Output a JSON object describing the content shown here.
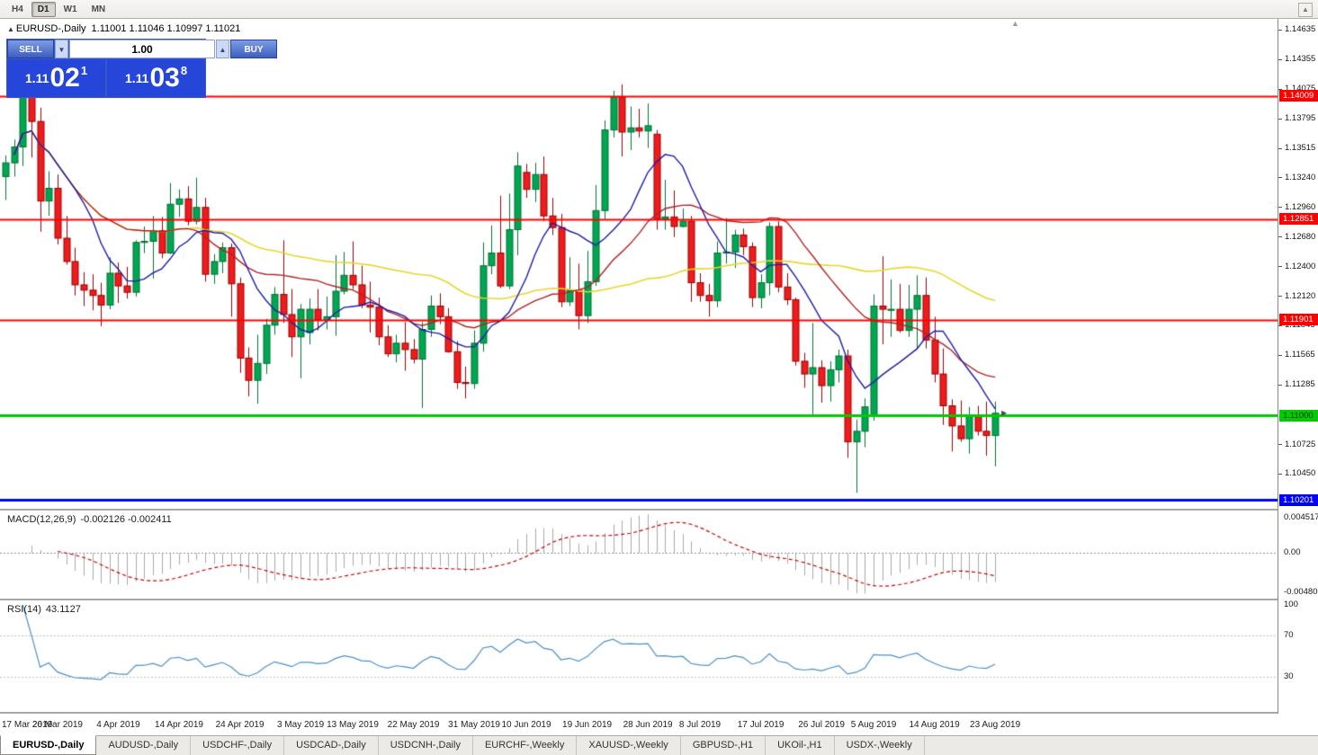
{
  "toolbar": {
    "timeframes": [
      {
        "label": "H4",
        "active": false
      },
      {
        "label": "D1",
        "active": true
      },
      {
        "label": "W1",
        "active": false
      },
      {
        "label": "MN",
        "active": false
      }
    ]
  },
  "chart": {
    "title_symbol": "EURUSD-,Daily",
    "ohlc_text": "1.11001 1.11046 1.10997 1.11021"
  },
  "trade_panel": {
    "sell_label": "SELL",
    "buy_label": "BUY",
    "volume": "1.00",
    "sell_price": {
      "small": "1.11",
      "big": "02",
      "sup": "1"
    },
    "buy_price": {
      "small": "1.11",
      "big": "03",
      "sup": "8"
    }
  },
  "price_scale": {
    "ticks": [
      "1.14635",
      "1.14355",
      "1.14075",
      "1.13795",
      "1.13515",
      "1.13240",
      "1.12960",
      "1.12680",
      "1.12400",
      "1.12120",
      "1.11845",
      "1.11565",
      "1.11285",
      "1.10725",
      "1.10450"
    ],
    "levels": [
      {
        "label": "1.14009",
        "price": 1.14009,
        "color": "#FF0000",
        "text_color": "#FFFFFF"
      },
      {
        "label": "1.12851",
        "price": 1.12851,
        "color": "#FF0000",
        "text_color": "#FFFFFF"
      },
      {
        "label": "1.11901",
        "price": 1.11901,
        "color": "#FF0000",
        "text_color": "#FFFFFF"
      },
      {
        "label": "1.11000",
        "price": 1.11,
        "color": "#00CC00",
        "text_color": "#002b00"
      },
      {
        "label": "1.10201",
        "price": 1.10201,
        "color": "#0000FF",
        "text_color": "#FFFFFF"
      }
    ]
  },
  "macd": {
    "name": "MACD(12,26,9)",
    "values": "-0.002126 -0.002411",
    "scale_top": "0.004517",
    "scale_mid": "0.00",
    "scale_bottom": "-0.004806"
  },
  "rsi": {
    "name": "RSI(14)",
    "value": "43.1127",
    "scale": [
      "100",
      "70",
      "30"
    ]
  },
  "dates": [
    {
      "label": "17 Mar 2019",
      "i": 0
    },
    {
      "label": "26 Mar 2019",
      "i": 6
    },
    {
      "label": "4 Apr 2019",
      "i": 13
    },
    {
      "label": "14 Apr 2019",
      "i": 20
    },
    {
      "label": "24 Apr 2019",
      "i": 27
    },
    {
      "label": "3 May 2019",
      "i": 34
    },
    {
      "label": "13 May 2019",
      "i": 40
    },
    {
      "label": "22 May 2019",
      "i": 47
    },
    {
      "label": "31 May 2019",
      "i": 54
    },
    {
      "label": "10 Jun 2019",
      "i": 60
    },
    {
      "label": "19 Jun 2019",
      "i": 67
    },
    {
      "label": "28 Jun 2019",
      "i": 74
    },
    {
      "label": "8 Jul 2019",
      "i": 80
    },
    {
      "label": "17 Jul 2019",
      "i": 87
    },
    {
      "label": "26 Jul 2019",
      "i": 94
    },
    {
      "label": "5 Aug 2019",
      "i": 100
    },
    {
      "label": "14 Aug 2019",
      "i": 107
    },
    {
      "label": "23 Aug 2019",
      "i": 114
    }
  ],
  "tabs": [
    {
      "label": "EURUSD-,Daily",
      "active": true
    },
    {
      "label": "AUDUSD-,Daily",
      "active": false
    },
    {
      "label": "USDCHF-,Daily",
      "active": false
    },
    {
      "label": "USDCAD-,Daily",
      "active": false
    },
    {
      "label": "USDCNH-,Daily",
      "active": false
    },
    {
      "label": "EURCHF-,Weekly",
      "active": false
    },
    {
      "label": "XAUUSD-,Weekly",
      "active": false
    },
    {
      "label": "GBPUSD-,H1",
      "active": false
    },
    {
      "label": "UKOil-,H1",
      "active": false
    },
    {
      "label": "USDX-,Weekly",
      "active": false
    }
  ],
  "chart_data": {
    "type": "candlestick",
    "symbol": "EURUSD-",
    "timeframe": "Daily",
    "y_range": [
      1.1012,
      1.14737
    ],
    "macd_range": [
      -0.004806,
      0.004517
    ],
    "rsi_levels": [
      70,
      30
    ],
    "ma_periods": {
      "fast": 9,
      "mid": 22,
      "slow": 50
    },
    "colors": {
      "bull": "#00A650",
      "bull_border": "#007038",
      "bear": "#EE1C1C",
      "bear_border": "#990000",
      "ma_fast": "#1C1CA8",
      "ma_mid": "#B22222",
      "ma_slow": "#E8D52E",
      "macd_hist": "#A8A8A8",
      "macd_signal": "#CC0000",
      "rsi_line": "#4A8FC7",
      "level_line": "#C0C0C0"
    },
    "hlines": [
      {
        "price": 1.14009,
        "color": "#FF0000",
        "width": 2
      },
      {
        "price": 1.12851,
        "color": "#FF0000",
        "width": 2
      },
      {
        "price": 1.11901,
        "color": "#FF0000",
        "width": 2
      },
      {
        "price": 1.11,
        "color": "#00CC00",
        "width": 3
      },
      {
        "price": 1.10201,
        "color": "#0000FF",
        "width": 3
      }
    ],
    "candles": [
      [
        1.1325,
        1.1345,
        1.1303,
        1.1338
      ],
      [
        1.1338,
        1.136,
        1.1325,
        1.1353
      ],
      [
        1.1353,
        1.141,
        1.1335,
        1.1405
      ],
      [
        1.1405,
        1.1412,
        1.1343,
        1.1377
      ],
      [
        1.1377,
        1.139,
        1.1273,
        1.1302
      ],
      [
        1.1302,
        1.133,
        1.1288,
        1.1314
      ],
      [
        1.1314,
        1.1327,
        1.1261,
        1.1267
      ],
      [
        1.1267,
        1.1288,
        1.1242,
        1.1245
      ],
      [
        1.1245,
        1.1258,
        1.1213,
        1.1223
      ],
      [
        1.1223,
        1.1235,
        1.1203,
        1.1218
      ],
      [
        1.1218,
        1.1233,
        1.1199,
        1.1213
      ],
      [
        1.1213,
        1.1225,
        1.1184,
        1.1204
      ],
      [
        1.1204,
        1.1249,
        1.12,
        1.1234
      ],
      [
        1.1234,
        1.1244,
        1.1206,
        1.1222
      ],
      [
        1.1222,
        1.124,
        1.121,
        1.1216
      ],
      [
        1.1216,
        1.1265,
        1.1212,
        1.1263
      ],
      [
        1.1263,
        1.1278,
        1.1253,
        1.1264
      ],
      [
        1.1264,
        1.1288,
        1.1229,
        1.1274
      ],
      [
        1.1274,
        1.1287,
        1.1248,
        1.1253
      ],
      [
        1.1253,
        1.1319,
        1.1252,
        1.1299
      ],
      [
        1.1299,
        1.1313,
        1.1287,
        1.1304
      ],
      [
        1.1304,
        1.1316,
        1.1279,
        1.1283
      ],
      [
        1.1283,
        1.1324,
        1.128,
        1.1296
      ],
      [
        1.1296,
        1.1305,
        1.1226,
        1.1233
      ],
      [
        1.1233,
        1.1252,
        1.1224,
        1.1245
      ],
      [
        1.1245,
        1.1263,
        1.1234,
        1.1258
      ],
      [
        1.1258,
        1.1262,
        1.1193,
        1.1224
      ],
      [
        1.1224,
        1.123,
        1.114,
        1.1154
      ],
      [
        1.1154,
        1.1164,
        1.1118,
        1.1133
      ],
      [
        1.1133,
        1.1176,
        1.1111,
        1.1149
      ],
      [
        1.1149,
        1.1191,
        1.1139,
        1.1185
      ],
      [
        1.1185,
        1.1221,
        1.1176,
        1.1214
      ],
      [
        1.1214,
        1.1265,
        1.1187,
        1.1195
      ],
      [
        1.1195,
        1.1219,
        1.1155,
        1.1174
      ],
      [
        1.1174,
        1.1205,
        1.1135,
        1.12
      ],
      [
        1.1178,
        1.121,
        1.1167,
        1.12
      ],
      [
        1.12,
        1.1219,
        1.118,
        1.119
      ],
      [
        1.119,
        1.1212,
        1.1181,
        1.1193
      ],
      [
        1.1193,
        1.1251,
        1.1175,
        1.1217
      ],
      [
        1.1217,
        1.1254,
        1.1214,
        1.1232
      ],
      [
        1.1232,
        1.1264,
        1.1219,
        1.1223
      ],
      [
        1.1223,
        1.1241,
        1.1201,
        1.1204
      ],
      [
        1.1204,
        1.1226,
        1.1178,
        1.1202
      ],
      [
        1.1202,
        1.1211,
        1.1166,
        1.1174
      ],
      [
        1.1174,
        1.1185,
        1.1155,
        1.1158
      ],
      [
        1.1158,
        1.1176,
        1.115,
        1.1168
      ],
      [
        1.1168,
        1.1188,
        1.1142,
        1.1162
      ],
      [
        1.1162,
        1.1172,
        1.1149,
        1.1153
      ],
      [
        1.1153,
        1.1188,
        1.1107,
        1.1181
      ],
      [
        1.1181,
        1.1213,
        1.1174,
        1.1203
      ],
      [
        1.1203,
        1.1215,
        1.1186,
        1.1193
      ],
      [
        1.1193,
        1.1201,
        1.1159,
        1.116
      ],
      [
        1.116,
        1.117,
        1.1125,
        1.1131
      ],
      [
        1.1131,
        1.1146,
        1.1116,
        1.113
      ],
      [
        1.113,
        1.118,
        1.1125,
        1.1168
      ],
      [
        1.1168,
        1.1263,
        1.116,
        1.1241
      ],
      [
        1.1241,
        1.1279,
        1.1233,
        1.1253
      ],
      [
        1.1253,
        1.1307,
        1.122,
        1.1222
      ],
      [
        1.1222,
        1.1309,
        1.1219,
        1.1275
      ],
      [
        1.1275,
        1.1348,
        1.1251,
        1.1335
      ],
      [
        1.1329,
        1.1337,
        1.1305,
        1.1313
      ],
      [
        1.1313,
        1.1338,
        1.1301,
        1.1327
      ],
      [
        1.1327,
        1.1344,
        1.1283,
        1.1288
      ],
      [
        1.1288,
        1.1305,
        1.127,
        1.1277
      ],
      [
        1.1277,
        1.129,
        1.1202,
        1.1207
      ],
      [
        1.1207,
        1.1249,
        1.1203,
        1.1218
      ],
      [
        1.1218,
        1.1243,
        1.1181,
        1.1194
      ],
      [
        1.1194,
        1.1255,
        1.1187,
        1.1226
      ],
      [
        1.1226,
        1.1317,
        1.1222,
        1.1293
      ],
      [
        1.1293,
        1.1378,
        1.1285,
        1.1369
      ],
      [
        1.1369,
        1.1406,
        1.1362,
        1.14
      ],
      [
        1.14,
        1.1412,
        1.1344,
        1.1367
      ],
      [
        1.1367,
        1.1391,
        1.135,
        1.1371
      ],
      [
        1.1371,
        1.1389,
        1.1362,
        1.1368
      ],
      [
        1.1368,
        1.1394,
        1.1352,
        1.1373
      ],
      [
        1.1365,
        1.1369,
        1.1275,
        1.1285
      ],
      [
        1.1285,
        1.1322,
        1.1275,
        1.1287
      ],
      [
        1.1287,
        1.1312,
        1.1268,
        1.1278
      ],
      [
        1.1278,
        1.1295,
        1.1277,
        1.1283
      ],
      [
        1.1283,
        1.1288,
        1.1207,
        1.1225
      ],
      [
        1.1225,
        1.1234,
        1.1207,
        1.1213
      ],
      [
        1.1213,
        1.1224,
        1.1193,
        1.1208
      ],
      [
        1.1208,
        1.1264,
        1.1202,
        1.1253
      ],
      [
        1.1253,
        1.1286,
        1.1243,
        1.1254
      ],
      [
        1.1254,
        1.1275,
        1.1239,
        1.127
      ],
      [
        1.127,
        1.1276,
        1.1251,
        1.1259
      ],
      [
        1.1259,
        1.1263,
        1.1202,
        1.1211
      ],
      [
        1.1211,
        1.1233,
        1.1201,
        1.1225
      ],
      [
        1.1225,
        1.1282,
        1.1213,
        1.1278
      ],
      [
        1.1278,
        1.1283,
        1.1216,
        1.1221
      ],
      [
        1.1221,
        1.1234,
        1.1204,
        1.1209
      ],
      [
        1.1209,
        1.1211,
        1.1147,
        1.1151
      ],
      [
        1.1151,
        1.1159,
        1.1126,
        1.1139
      ],
      [
        1.1139,
        1.1187,
        1.1101,
        1.1145
      ],
      [
        1.1145,
        1.1152,
        1.1112,
        1.1128
      ],
      [
        1.1128,
        1.1151,
        1.1113,
        1.1143
      ],
      [
        1.1143,
        1.1162,
        1.1131,
        1.1156
      ],
      [
        1.1156,
        1.1162,
        1.106,
        1.1075
      ],
      [
        1.1075,
        1.1096,
        1.1027,
        1.1085
      ],
      [
        1.1085,
        1.1116,
        1.107,
        1.1108
      ],
      [
        1.11,
        1.1214,
        1.1095,
        1.1203
      ],
      [
        1.1203,
        1.125,
        1.1167,
        1.12
      ],
      [
        1.12,
        1.1228,
        1.1174,
        1.12
      ],
      [
        1.12,
        1.1224,
        1.1178,
        1.118
      ],
      [
        1.118,
        1.1223,
        1.1174,
        1.12
      ],
      [
        1.12,
        1.1232,
        1.1163,
        1.1213
      ],
      [
        1.1213,
        1.123,
        1.1163,
        1.1171
      ],
      [
        1.1171,
        1.1193,
        1.1131,
        1.1139
      ],
      [
        1.1139,
        1.1163,
        1.1091,
        1.1109
      ],
      [
        1.1109,
        1.1115,
        1.1066,
        1.109
      ],
      [
        1.109,
        1.1114,
        1.1075,
        1.1078
      ],
      [
        1.1078,
        1.1108,
        1.1064,
        1.11
      ],
      [
        1.11,
        1.1109,
        1.1081,
        1.1085
      ],
      [
        1.1085,
        1.1113,
        1.1062,
        1.1081
      ],
      [
        1.1081,
        1.1113,
        1.1052,
        1.1102
      ]
    ]
  }
}
